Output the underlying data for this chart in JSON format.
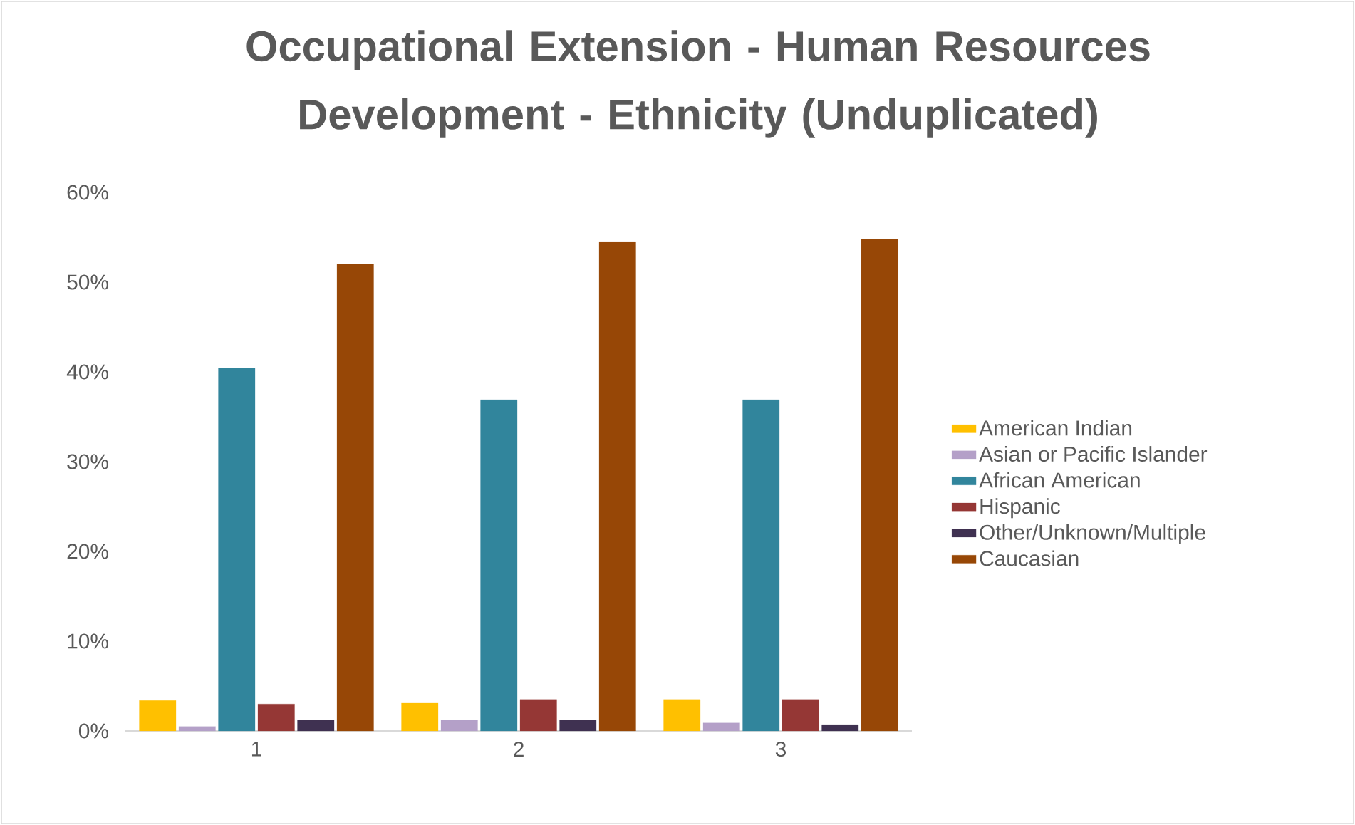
{
  "chart_data": {
    "type": "bar",
    "title": "Occupational Extension - Human Resources Development - Ethnicity (Unduplicated)",
    "categories": [
      "1",
      "2",
      "3"
    ],
    "series": [
      {
        "name": "American Indian",
        "color": "#ffc000",
        "values": [
          3.4,
          3.1,
          3.5
        ]
      },
      {
        "name": "Asian or Pacific Islander",
        "color": "#b4a0c8",
        "values": [
          0.5,
          1.2,
          0.9
        ]
      },
      {
        "name": "African American",
        "color": "#31859c",
        "values": [
          40.4,
          36.9,
          36.9
        ]
      },
      {
        "name": "Hispanic",
        "color": "#953735",
        "values": [
          3.0,
          3.5,
          3.5
        ]
      },
      {
        "name": "Other/Unknown/Multiple",
        "color": "#3f3151",
        "values": [
          1.2,
          1.2,
          0.7
        ]
      },
      {
        "name": "Caucasian",
        "color": "#974706",
        "values": [
          52.0,
          54.5,
          54.8
        ]
      }
    ],
    "ylim": [
      0,
      60
    ],
    "yticks": [
      {
        "value": 0,
        "label": "0%"
      },
      {
        "value": 10,
        "label": "10%"
      },
      {
        "value": 20,
        "label": "20%"
      },
      {
        "value": 30,
        "label": "30%"
      },
      {
        "value": 40,
        "label": "40%"
      },
      {
        "value": 50,
        "label": "50%"
      },
      {
        "value": 60,
        "label": "60%"
      }
    ],
    "legend": "right",
    "grid": false
  }
}
